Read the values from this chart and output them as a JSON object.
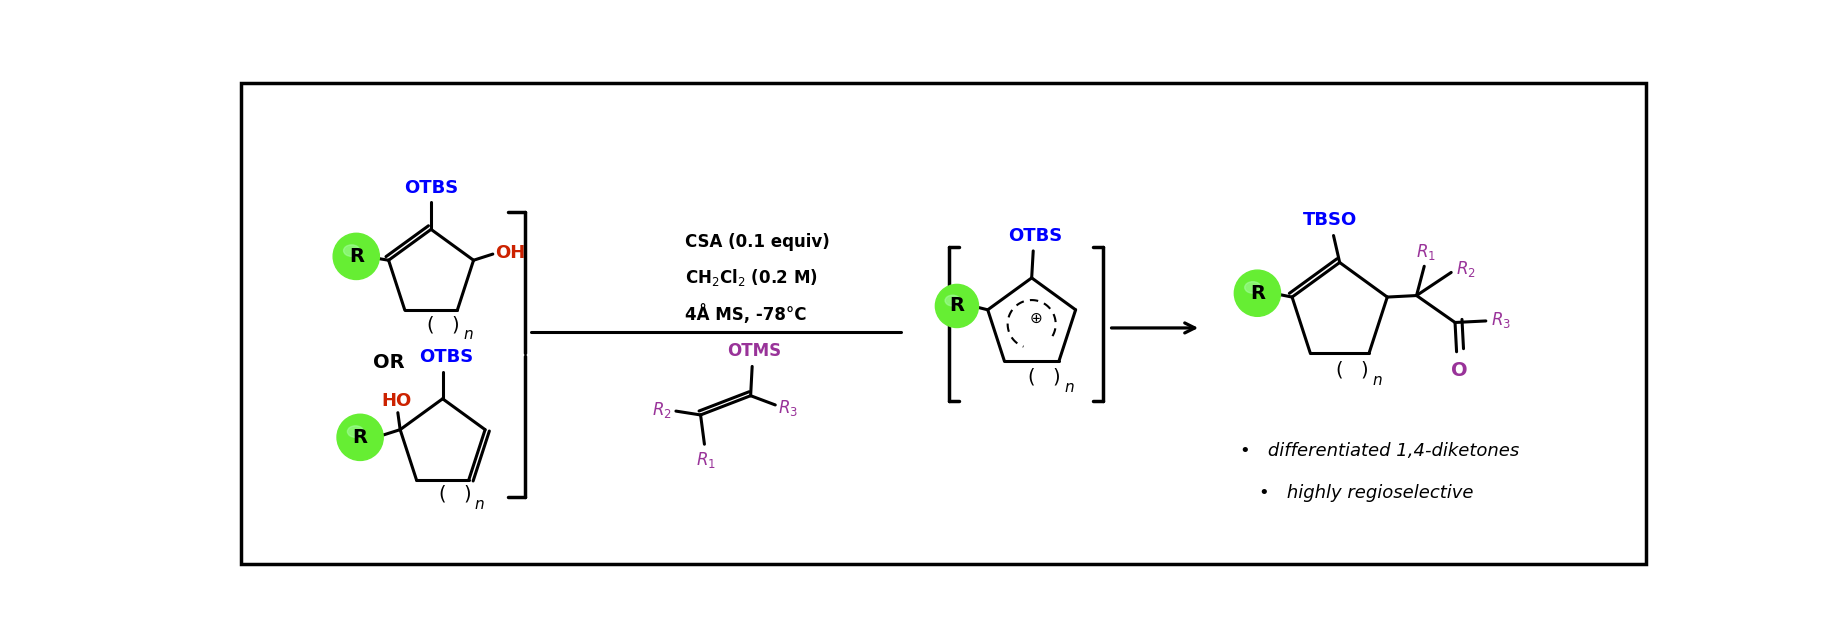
{
  "background_color": "#ffffff",
  "border_color": "#000000",
  "green_color": "#66ee33",
  "blue_color": "#0000ff",
  "red_color": "#cc2200",
  "purple_color": "#993399",
  "black_color": "#000000",
  "condition_line1": "CSA (0.1 equiv)",
  "condition_line2": "CH$_2$Cl$_2$ (0.2 M)",
  "condition_line3": "4Å MS, -78°C",
  "bullet1": "•   differentiated 1,4-diketones",
  "bullet2": "•   highly regioselective",
  "or_text": "OR"
}
